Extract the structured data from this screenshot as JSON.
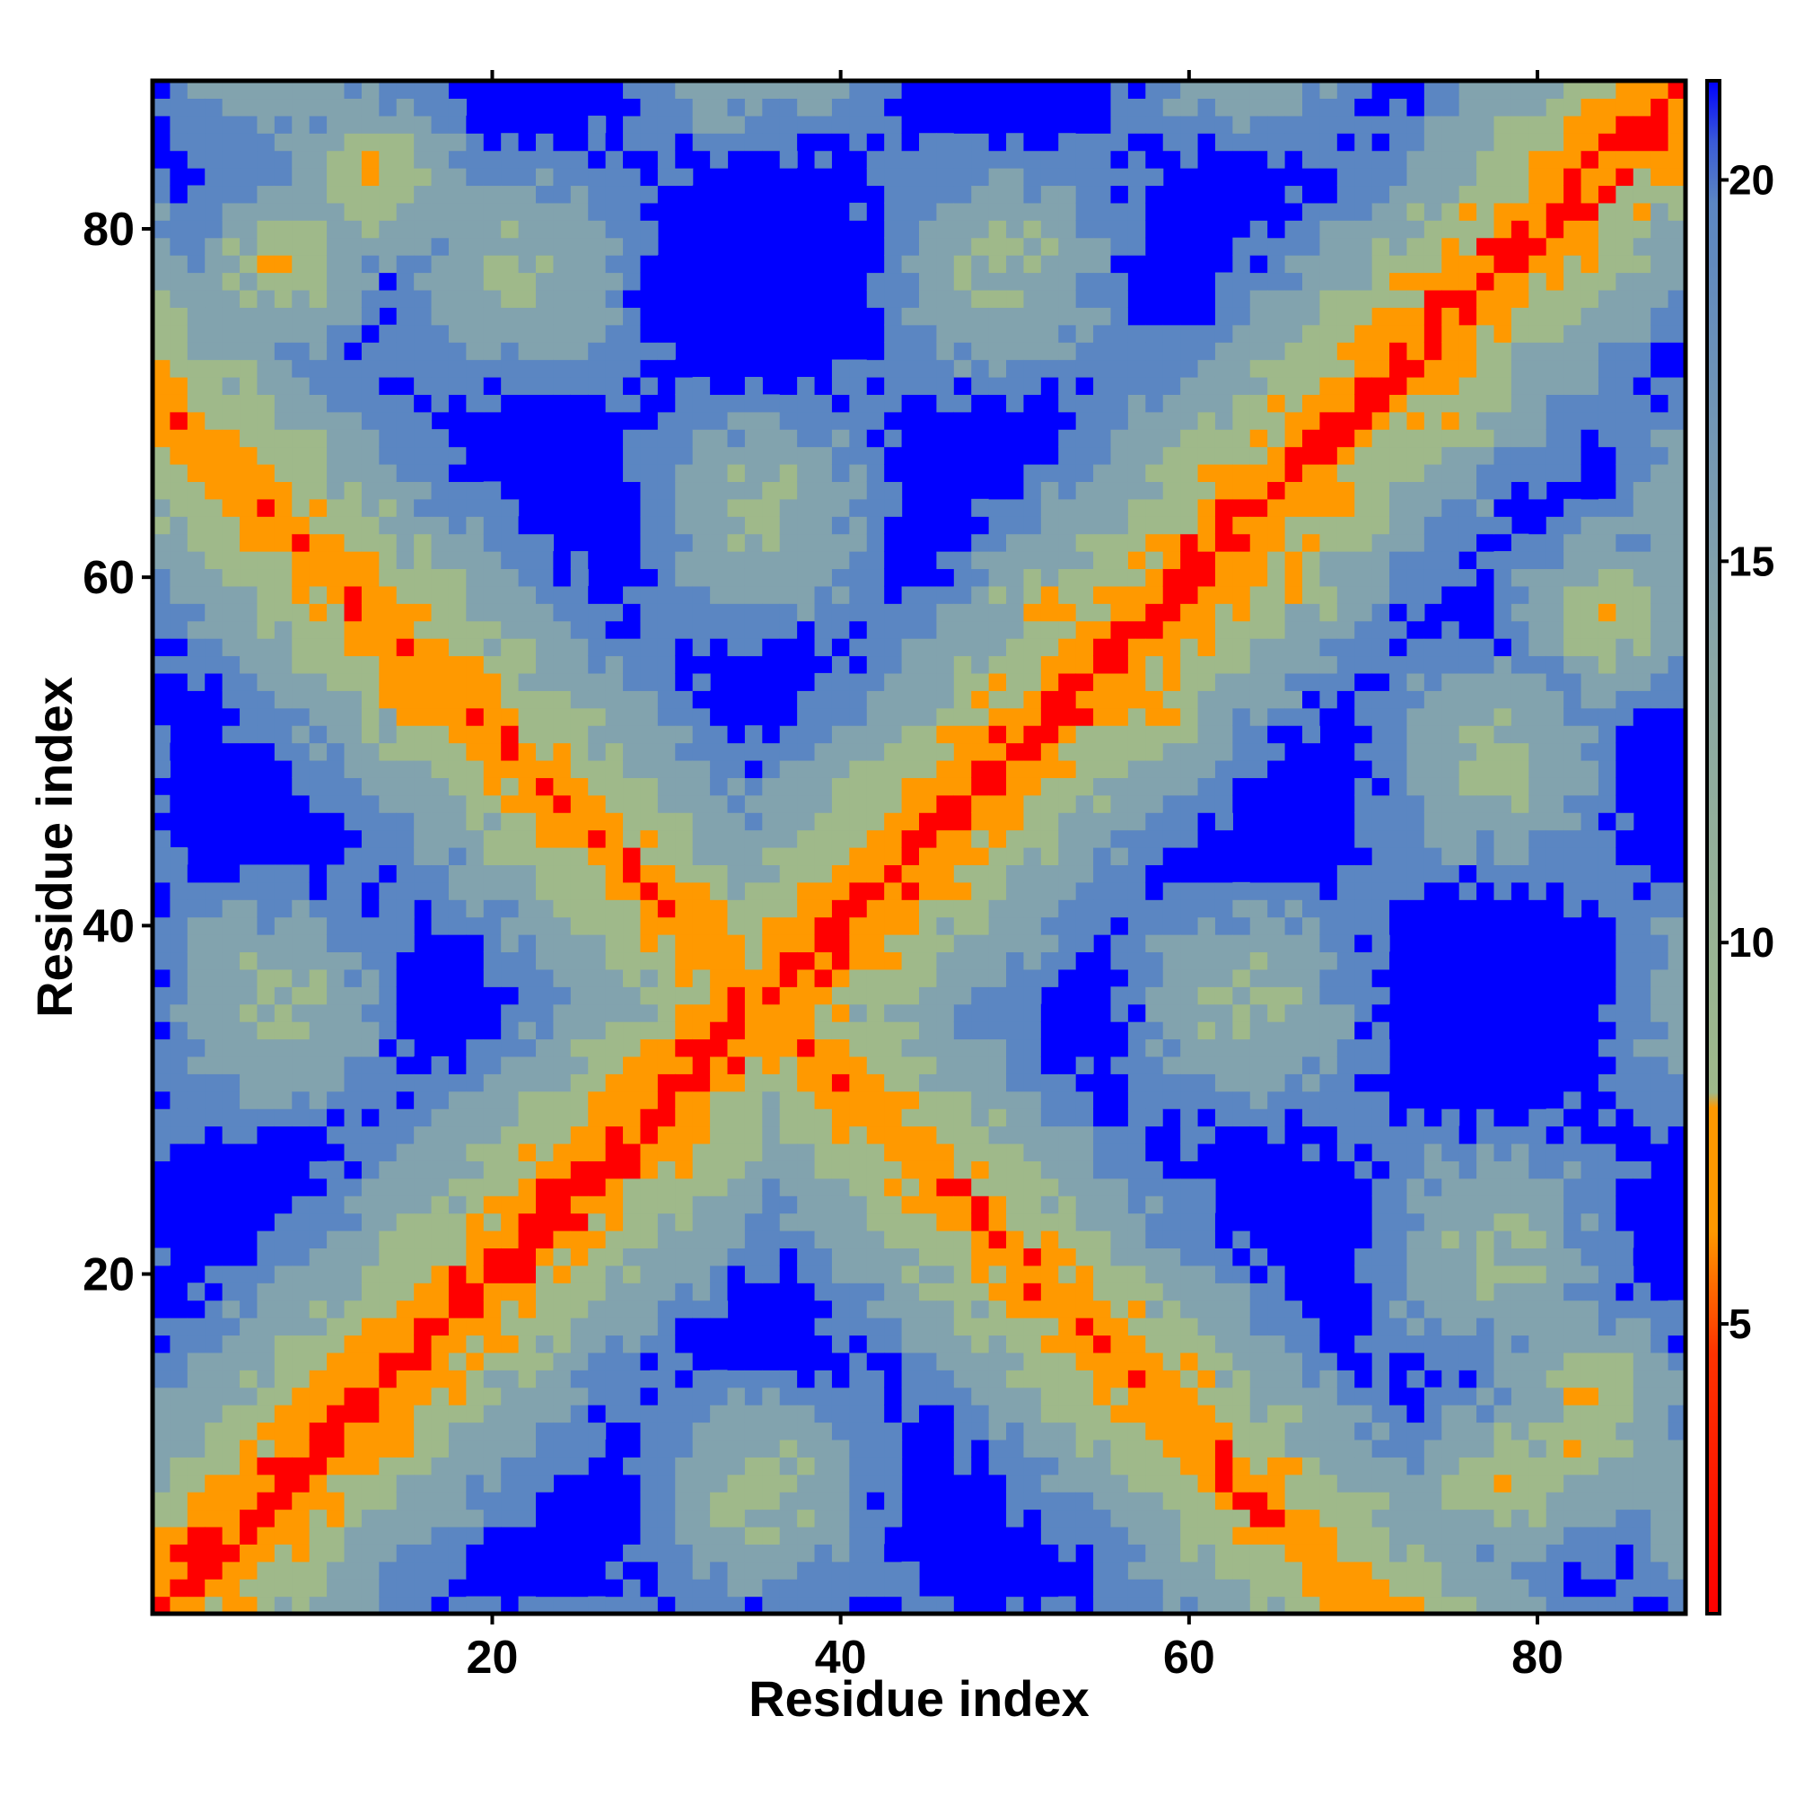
{
  "chart_data": {
    "type": "heatmap",
    "title": "",
    "xlabel": "Residue index",
    "ylabel": "Residue index",
    "n_residues": 88,
    "xlim": [
      0.5,
      88.5
    ],
    "ylim": [
      0.5,
      88.5
    ],
    "x_ticks": [
      "20",
      "40",
      "60",
      "80"
    ],
    "y_ticks": [
      "20",
      "40",
      "60",
      "80"
    ],
    "x_tick_values": [
      20,
      40,
      60,
      80
    ],
    "y_tick_values": [
      20,
      40,
      60,
      80
    ],
    "colorbar": {
      "range": [
        1.2,
        21.3
      ],
      "ticks": [
        "5",
        "10",
        "15",
        "20"
      ],
      "tick_values": [
        5,
        10,
        15,
        20
      ],
      "colors": {
        "low": "#ff0000",
        "mid_low": "#ff9900",
        "mid": "#9fb98a",
        "high": "#5b86c2",
        "cutoff": "#0000ff"
      }
    },
    "saturation_value": 21.3,
    "pattern": {
      "description_values": "distance map: diagonal contacts near residue i=j, anti-diagonal band centred on i+j=71, helical periodic bands",
      "diagonal_width": 1.5,
      "antidiagonal_sum": 71,
      "contact_spots": [
        [
          8,
          78
        ],
        [
          13,
          83
        ],
        [
          17,
          20
        ],
        [
          20,
          17
        ],
        [
          33,
          40
        ],
        [
          40,
          33
        ],
        [
          52,
          58
        ],
        [
          58,
          52
        ],
        [
          60,
          66
        ],
        [
          66,
          60
        ],
        [
          72,
          73
        ],
        [
          75,
          70
        ],
        [
          78,
          8
        ],
        [
          83,
          13
        ],
        [
          84,
          58
        ],
        [
          82,
          10
        ]
      ]
    }
  }
}
